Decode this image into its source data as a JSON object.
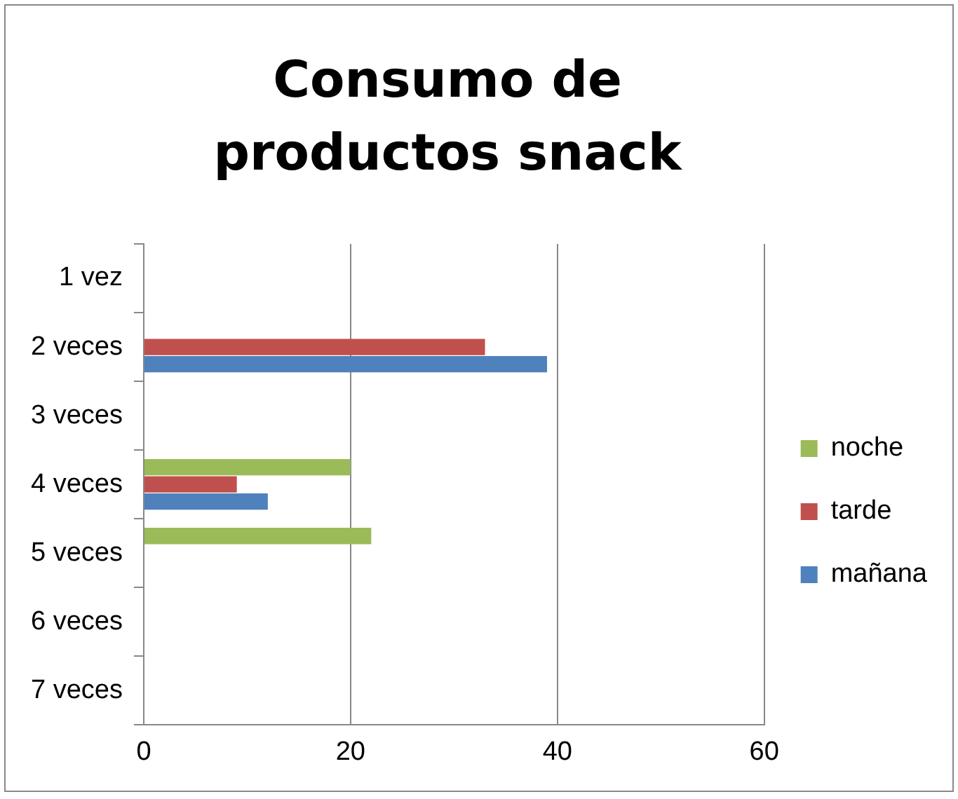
{
  "chart_data": {
    "type": "bar",
    "orientation": "horizontal",
    "title": "Consumo de productos snack",
    "categories": [
      "1 vez",
      "2 veces",
      "3 veces",
      "4 veces",
      "5 veces",
      "6 veces",
      "7 veces"
    ],
    "series": [
      {
        "name": "noche",
        "color": "#9bbb59",
        "values": [
          null,
          null,
          null,
          20,
          22,
          null,
          null
        ]
      },
      {
        "name": "tarde",
        "color": "#c0504d",
        "values": [
          null,
          33,
          null,
          9,
          null,
          null,
          null
        ]
      },
      {
        "name": "mañana",
        "color": "#4f81bd",
        "values": [
          null,
          39,
          null,
          12,
          null,
          null,
          null
        ]
      }
    ],
    "xlim": [
      0,
      60
    ],
    "xticks": [
      0,
      20,
      40,
      60
    ],
    "grid": "x",
    "legend": "right"
  }
}
